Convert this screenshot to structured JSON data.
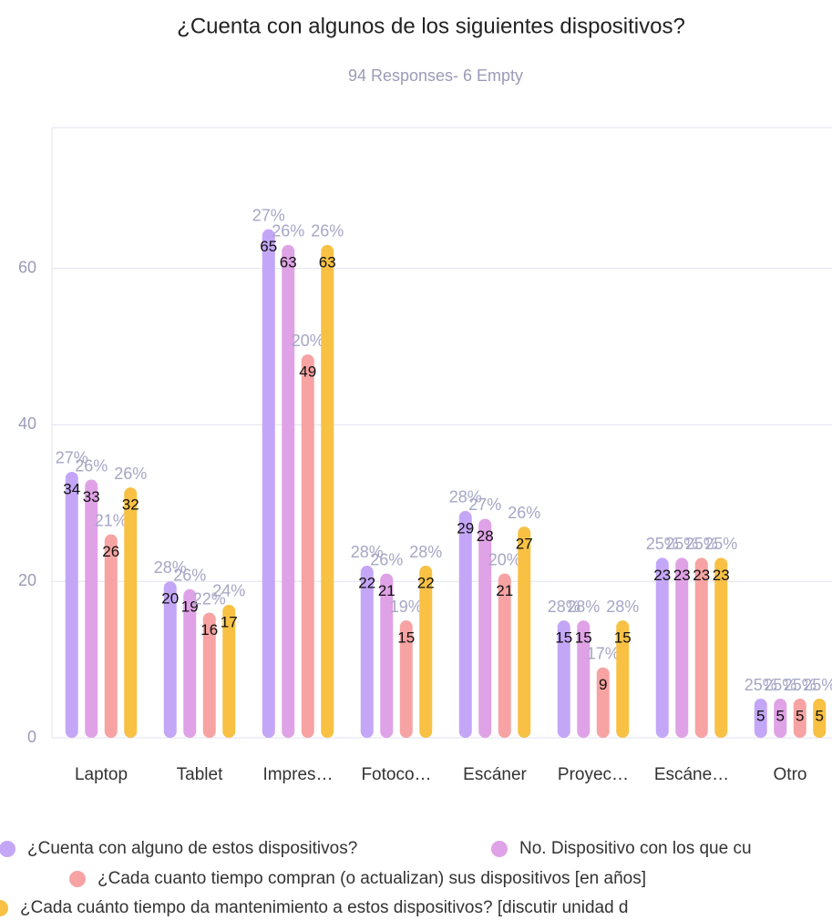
{
  "chart_data": {
    "type": "bar",
    "title": "¿Cuenta con algunos de los siguientes dispositivos?",
    "subtitle": "94 Responses- 6 Empty",
    "categories": [
      "Laptop",
      "Tablet",
      "Impres…",
      "Fotoco…",
      "Escáner",
      "Proyec…",
      "Escáne…",
      "Otro"
    ],
    "series": [
      {
        "name": "¿Cuenta con alguno de estos dispositivos?",
        "color": "#c4a6f7",
        "values": [
          34,
          20,
          65,
          22,
          29,
          15,
          23,
          5
        ],
        "percent_labels": [
          "27%",
          "28%",
          "27%",
          "28%",
          "28%",
          "28%",
          "25%",
          "25%"
        ]
      },
      {
        "name": "No. Dispositivo con los que cu",
        "color": "#e0a2e6",
        "values": [
          33,
          19,
          63,
          21,
          28,
          15,
          23,
          5
        ],
        "percent_labels": [
          "26%",
          "26%",
          "26%",
          "26%",
          "27%",
          "28%",
          "25%",
          "25%"
        ]
      },
      {
        "name": "¿Cada cuanto tiempo compran (o actualizan) sus dispositivos [en años]",
        "color": "#f7a3a3",
        "values": [
          26,
          16,
          49,
          15,
          21,
          9,
          23,
          5
        ],
        "percent_labels": [
          "21%",
          "22%",
          "20%",
          "19%",
          "20%",
          "17%",
          "25%",
          "25%"
        ]
      },
      {
        "name": "¿Cada cuánto tiempo da mantenimiento a estos dispositivos? [discutir unidad d",
        "color": "#f8c144",
        "values": [
          32,
          17,
          63,
          22,
          27,
          15,
          23,
          5
        ],
        "percent_labels": [
          "26%",
          "24%",
          "26%",
          "28%",
          "26%",
          "28%",
          "25%",
          "25%"
        ]
      }
    ],
    "ylim": [
      0,
      78
    ],
    "yticks": [
      0,
      20,
      40,
      60
    ],
    "grid": true
  }
}
